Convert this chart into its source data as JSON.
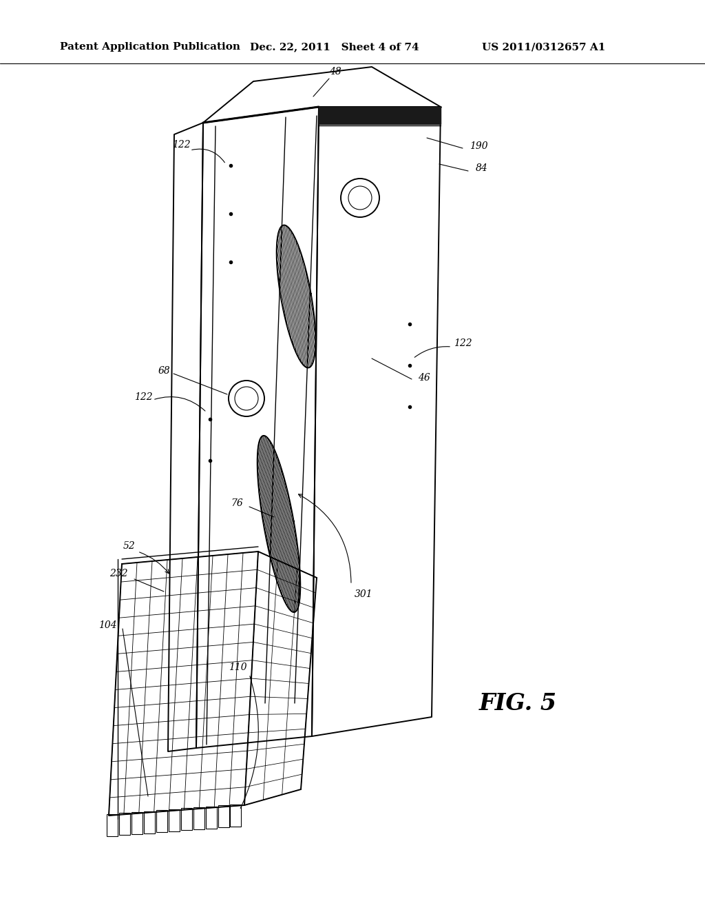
{
  "header_left": "Patent Application Publication",
  "header_mid": "Dec. 22, 2011   Sheet 4 of 74",
  "header_right": "US 2011/0312657 A1",
  "fig_label": "FIG. 5",
  "bg": "#ffffff",
  "ink": "#000000"
}
